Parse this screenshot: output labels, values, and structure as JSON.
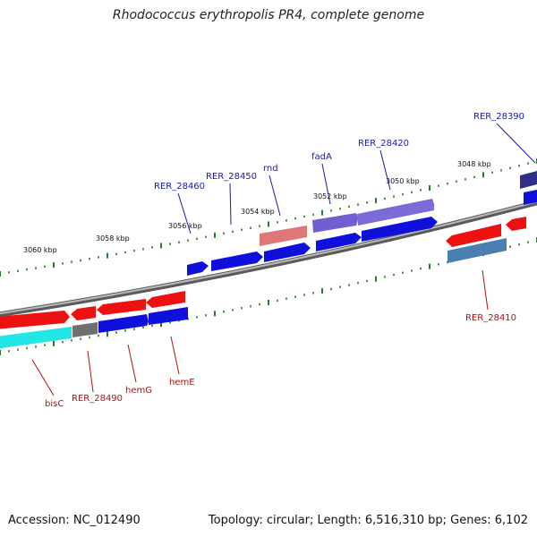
{
  "title": "Rhodococcus erythropolis PR4, complete genome",
  "footer": {
    "accession": "Accession: NC_012490",
    "topology": "Topology: circular; Length: 6,516,310 bp; Genes: 6,102"
  },
  "colors": {
    "background": "#ffffff",
    "backbone": "#808080",
    "tick": "#2a7a2a",
    "label_blue": "#1a1aa6",
    "label_red": "#b01212",
    "gene_red": "#ee1111",
    "gene_blue": "#1010dd",
    "gene_purple": "#7060d0",
    "gene_pink": "#e07070",
    "gene_cyan": "#22e6e6",
    "gene_gray": "#707070",
    "gene_steel": "#4a80b0",
    "gene_navy": "#30308a"
  },
  "scale": {
    "unit": "kbp",
    "labels": [
      "3060 kbp",
      "3058 kbp",
      "3056 kbp",
      "3054 kbp",
      "3052 kbp",
      "3050 kbp",
      "3048 kbp"
    ]
  },
  "gene_labels": {
    "top": [
      "RER_28460",
      "RER_28450",
      "rnd",
      "fadA",
      "RER_28420",
      "RER_28390"
    ],
    "bottom": [
      "bisC",
      "RER_28490",
      "hemG",
      "hemE",
      "RER_28410"
    ]
  }
}
